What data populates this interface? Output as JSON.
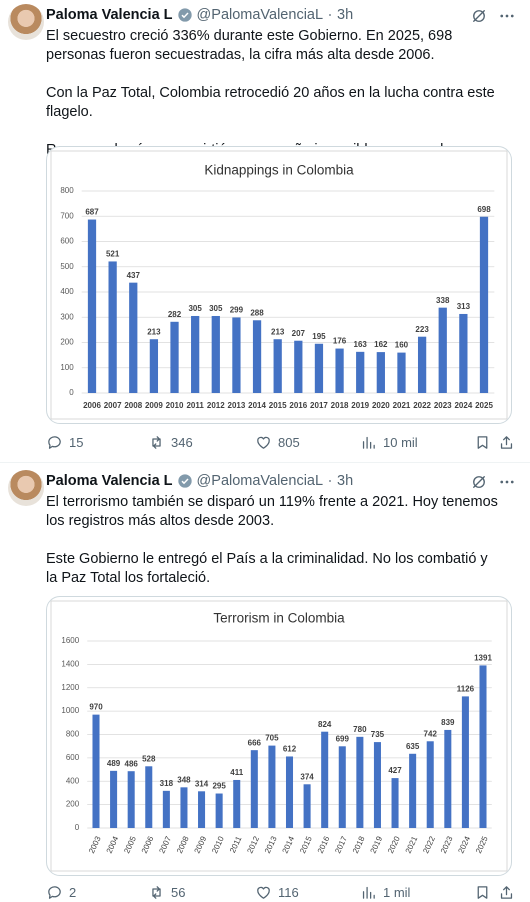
{
  "tweets": [
    {
      "name": "Paloma Valencia L",
      "handle": "@PalomaValenciaL",
      "time": "3h",
      "text": [
        "El secuestro creció 336% durante este Gobierno. En 2025, 698 personas fueron secuestradas, la cifra más alta desde 2006.",
        "Con la Paz Total, Colombia retrocedió 20 años en la lucha contra este flagelo.",
        "Recorrer el país se convirtió en un sueño imposible para muchos."
      ],
      "stats": {
        "replies": 15,
        "retweets": 346,
        "likes": 805,
        "views": "10 mil"
      }
    },
    {
      "name": "Paloma Valencia L",
      "handle": "@PalomaValenciaL",
      "time": "3h",
      "text": [
        "El terrorismo también se disparó un 119% frente a 2021. Hoy tenemos los registros más altos desde 2003.",
        "Este Gobierno le entregó el País a la criminalidad. No los combatió y la Paz Total los fortaleció."
      ],
      "stats": {
        "replies": 2,
        "retweets": 56,
        "likes": 116,
        "views": "1 mil"
      }
    }
  ],
  "chart_data": [
    {
      "type": "bar",
      "title": "Kidnappings in Colombia",
      "color": "#4472c4",
      "grid": true,
      "categories": [
        "2006",
        "2007",
        "2008",
        "2009",
        "2010",
        "2011",
        "2012",
        "2013",
        "2014",
        "2015",
        "2016",
        "2017",
        "2018",
        "2019",
        "2020",
        "2021",
        "2022",
        "2023",
        "2024",
        "2025"
      ],
      "values": [
        687,
        521,
        437,
        213,
        282,
        305,
        305,
        299,
        288,
        213,
        207,
        195,
        176,
        163,
        162,
        160,
        223,
        338,
        313,
        698
      ],
      "ylim": [
        0,
        800
      ],
      "yticks": [
        0,
        100,
        200,
        300,
        400,
        500,
        600,
        700,
        800
      ]
    },
    {
      "type": "bar",
      "title": "Terrorism in Colombia",
      "color": "#4472c4",
      "grid": true,
      "categories": [
        "2003",
        "2004",
        "2005",
        "2006",
        "2007",
        "2008",
        "2009",
        "2010",
        "2011",
        "2012",
        "2013",
        "2014",
        "2015",
        "2016",
        "2017",
        "2018",
        "2019",
        "2020",
        "2021",
        "2022",
        "2023",
        "2024",
        "2025"
      ],
      "values": [
        970,
        489,
        486,
        528,
        318,
        348,
        314,
        295,
        411,
        666,
        705,
        612,
        374,
        824,
        699,
        780,
        735,
        427,
        635,
        742,
        839,
        1126,
        1391
      ],
      "ylim": [
        0,
        1600
      ],
      "yticks": [
        0,
        200,
        400,
        600,
        800,
        1000,
        1200,
        1400,
        1600
      ]
    }
  ]
}
